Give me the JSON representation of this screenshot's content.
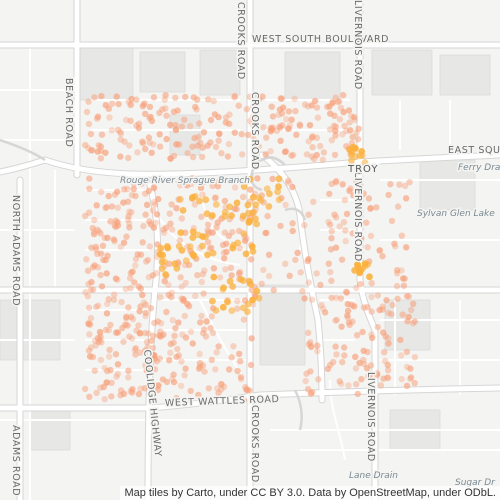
{
  "map": {
    "roads": {
      "west_south_boulevard": "WEST SOUTH BOULEVARD",
      "west_wattles_road": "WEST WATTLES ROAD",
      "crooks_road_top": "CROOKS ROAD",
      "crooks_road_bottom": "CROOKS ROAD",
      "livernois_road_top": "LIVERNOIS ROAD",
      "livernois_road_mid": "LIVERNOIS ROAD",
      "livernois_road_bottom": "LIVERNOIS ROAD",
      "beach_road": "BEACH ROAD",
      "north_adams_road": "NORTH ADAMS ROAD",
      "adams_road": "ADAMS ROAD",
      "coolidge_highway": "COOLIDGE HIGHWAY",
      "east_square": "EAST SQUA"
    },
    "places": {
      "rouge_river": "Rouge River Sprague Branch",
      "troy": "TROY",
      "ferry_drain": "Ferry Drai",
      "sylvan_glen_lake": "Sylvan Glen Lake",
      "lane_drain": "Lane Drain",
      "sugar_drain": "Sugar Dr"
    },
    "attribution": "Map tiles by Carto, under CC BY 3.0. Data by OpenStreetMap, under ODbL.",
    "colors": {
      "background": "#f4f4f2",
      "road": "#ffffff",
      "road_casing": "#d9d9d9",
      "block": "#e6e6e4",
      "parcel": "#dcdcda",
      "point_light": "#f7a07a",
      "point_dense": "#fbb03b",
      "water_text": "#7b8a93"
    }
  }
}
